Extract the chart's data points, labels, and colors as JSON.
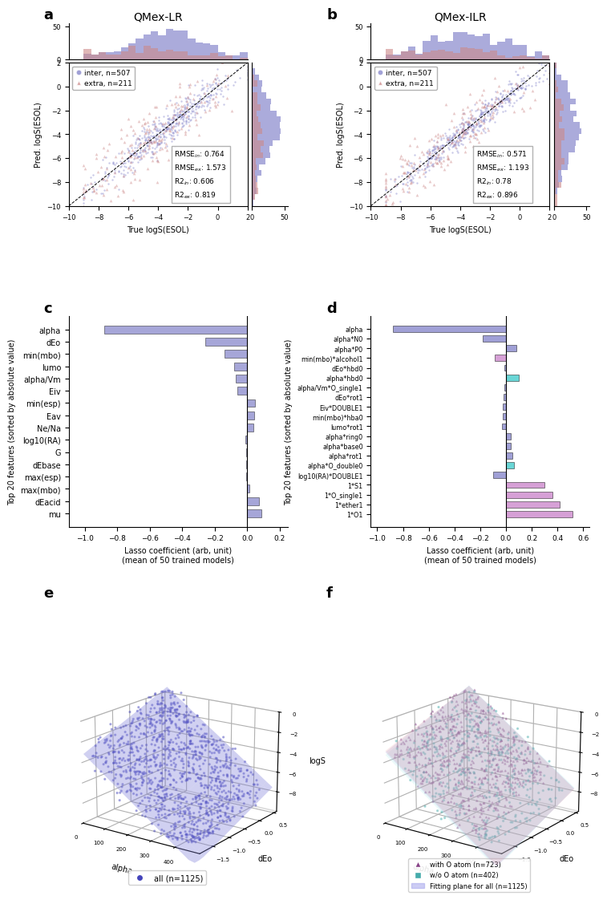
{
  "panel_a_title": "QMex-LR",
  "panel_b_title": "QMex-ILR",
  "inter_color": "#8888cc",
  "extra_color": "#cc8888",
  "inter_n": 507,
  "extra_n": 211,
  "rmse_in_a": "0.764",
  "rmse_ex_a": "1.573",
  "r2_in_a": "0.606",
  "r2_ex_a": "0.819",
  "rmse_in_b": "0.571",
  "rmse_ex_b": "1.193",
  "r2_in_b": "0.78",
  "r2_ex_b": "0.896",
  "bar_color_c": "#8888cc",
  "bar_color_d_blue": "#8888cc",
  "bar_color_d_pink": "#cc88cc",
  "bar_color_d_teal": "#44cccc",
  "lasso_c_features": [
    "mu",
    "dEacid",
    "max(mbo)",
    "max(esp)",
    "dEbase",
    "G",
    "log10(RA)",
    "Ne/Na",
    "Eav",
    "min(esp)",
    "Eiv",
    "alpha/Vm",
    "lumo",
    "min(mbo)",
    "dEo",
    "alpha"
  ],
  "lasso_c_values": [
    0.09,
    0.075,
    0.012,
    -0.004,
    -0.006,
    -0.008,
    -0.01,
    0.038,
    0.042,
    0.048,
    -0.058,
    -0.068,
    -0.078,
    -0.14,
    -0.26,
    -0.88
  ],
  "lasso_d_features": [
    "1*O1",
    "1*ether1",
    "1*O_single1",
    "1*S1",
    "log10(RA)*DOUBLE1",
    "alpha*O_double0",
    "alpha*rot1",
    "alpha*base0",
    "alpha*ring0",
    "lumo*rot1",
    "min(mbo)*hba0",
    "Eiv*DOUBLE1",
    "dEo*rot1",
    "alpha/Vm*O_single1",
    "alpha*hbd0",
    "dEo*hbd0",
    "min(mbo)*alcohol1",
    "alpha*P0",
    "alpha*N0",
    "alpha"
  ],
  "lasso_d_values": [
    0.52,
    0.42,
    0.36,
    0.3,
    -0.1,
    0.06,
    0.05,
    0.04,
    0.035,
    -0.03,
    -0.025,
    -0.022,
    -0.018,
    -0.015,
    0.1,
    -0.012,
    -0.09,
    0.08,
    -0.18,
    -0.88
  ],
  "lasso_d_colors": [
    "#cc88cc",
    "#cc88cc",
    "#cc88cc",
    "#cc88cc",
    "#8888cc",
    "#44cccc",
    "#8888cc",
    "#8888cc",
    "#8888cc",
    "#8888cc",
    "#8888cc",
    "#8888cc",
    "#8888cc",
    "#8888cc",
    "#44cccc",
    "#8888cc",
    "#cc88cc",
    "#8888cc",
    "#8888cc",
    "#8888cc"
  ],
  "panel_e_3d_color": "#4444bb",
  "panel_f_with_O_color": "#884488",
  "panel_f_wo_O_color": "#44aaaa",
  "panel_f_plane_all_color": "#aaaaee",
  "panel_f_plane_O_color": "#ffaaaa",
  "panel_f_plane_wo_color": "#aaffff"
}
